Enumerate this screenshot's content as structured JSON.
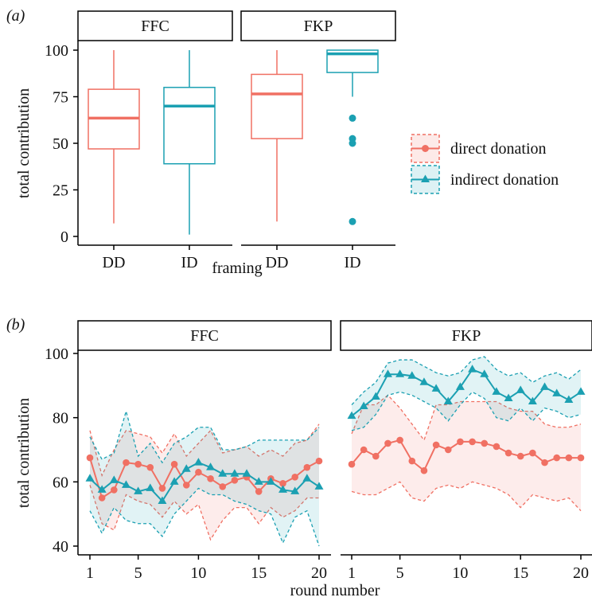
{
  "chart_data": [
    {
      "panel_tag": "(a)",
      "type": "box",
      "facets": [
        "FFC",
        "FKP"
      ],
      "categories": [
        "DD",
        "ID"
      ],
      "xlabel": "framing",
      "ylabel": "total contribution",
      "ylim": [
        0,
        100
      ],
      "yticks": [
        0,
        25,
        50,
        75,
        100
      ],
      "grid": false,
      "boxes": [
        {
          "facet": "FFC",
          "category": "DD",
          "color": "#F07063",
          "min": 7,
          "q1": 47,
          "median": 63.5,
          "q3": 79,
          "max": 100,
          "outliers": []
        },
        {
          "facet": "FFC",
          "category": "ID",
          "color": "#1BA0B2",
          "min": 1,
          "q1": 39,
          "median": 70,
          "q3": 80,
          "max": 100,
          "outliers": []
        },
        {
          "facet": "FKP",
          "category": "DD",
          "color": "#F07063",
          "min": 8,
          "q1": 52.5,
          "median": 76.5,
          "q3": 87,
          "max": 100,
          "outliers": []
        },
        {
          "facet": "FKP",
          "category": "ID",
          "color": "#1BA0B2",
          "min": 75,
          "q1": 88,
          "median": 98,
          "q3": 100,
          "max": 100,
          "outliers": [
            63.5,
            52.5,
            50,
            8
          ]
        }
      ]
    },
    {
      "panel_tag": "(b)",
      "type": "line",
      "facets": [
        "FFC",
        "FKP"
      ],
      "xlabel": "round number",
      "ylabel": "total contribution",
      "xlim": [
        1,
        20
      ],
      "ylim": [
        40,
        100
      ],
      "xticks": [
        1,
        5,
        10,
        15,
        20
      ],
      "yticks": [
        40,
        60,
        80,
        100
      ],
      "x": [
        1,
        2,
        3,
        4,
        5,
        6,
        7,
        8,
        9,
        10,
        11,
        12,
        13,
        14,
        15,
        16,
        17,
        18,
        19,
        20
      ],
      "series": [
        {
          "name": "direct donation",
          "facet": "FFC",
          "color": "#F07063",
          "marker": "circle",
          "values": [
            67.5,
            55,
            57.5,
            66,
            65.5,
            64.5,
            58,
            65.5,
            59,
            63,
            61,
            58.5,
            60.5,
            61.5,
            57,
            61,
            59.5,
            61.5,
            64.5,
            66.5
          ],
          "lower": [
            59,
            47,
            45,
            56,
            54,
            53,
            49,
            54,
            50,
            53,
            42,
            48,
            52,
            52,
            47,
            52,
            49,
            51,
            55,
            55
          ],
          "upper": [
            76,
            62,
            70,
            76,
            75,
            74,
            69,
            75,
            68,
            72,
            76,
            69,
            70,
            71,
            68,
            70,
            68,
            72,
            73,
            78
          ]
        },
        {
          "name": "indirect donation",
          "facet": "FFC",
          "color": "#1BA0B2",
          "marker": "triangle",
          "values": [
            61,
            57.5,
            60.5,
            59,
            57,
            58,
            54,
            60,
            64,
            66,
            64.5,
            62.5,
            62.5,
            62.5,
            60,
            60,
            57.5,
            57,
            61,
            58.5
          ],
          "lower": [
            51,
            44,
            52,
            48,
            47,
            47,
            43,
            50,
            54,
            58,
            56,
            56,
            54,
            53,
            51,
            50,
            41,
            49,
            51,
            40
          ],
          "upper": [
            74,
            67,
            69,
            82,
            68,
            72,
            66,
            72,
            74,
            77,
            77,
            70,
            70,
            71,
            73,
            73,
            73,
            73,
            73,
            77
          ]
        },
        {
          "name": "direct donation",
          "facet": "FKP",
          "color": "#F07063",
          "marker": "circle",
          "values": [
            65.5,
            70,
            68,
            72,
            73,
            66.5,
            63.5,
            71.5,
            70,
            72.5,
            72.5,
            72,
            71,
            69,
            68,
            69,
            66,
            67.5,
            67.5,
            67.5
          ],
          "lower": [
            57,
            56,
            56,
            58,
            60,
            55,
            54,
            58,
            59,
            58,
            60,
            59,
            58,
            56,
            52,
            56,
            55,
            54,
            55,
            51
          ],
          "upper": [
            75,
            84,
            84,
            87,
            83,
            78,
            73,
            84,
            84,
            85,
            85,
            85,
            85,
            83,
            82,
            82,
            78,
            77,
            77,
            78
          ]
        },
        {
          "name": "indirect donation",
          "facet": "FKP",
          "color": "#1BA0B2",
          "marker": "triangle",
          "values": [
            80.5,
            83.5,
            86.5,
            93.5,
            93.5,
            93,
            91,
            89,
            85,
            89.5,
            95,
            93.5,
            88,
            86,
            88.5,
            85,
            89.5,
            87.5,
            85.5,
            88
          ],
          "lower": [
            76,
            77,
            81,
            87,
            88,
            87,
            85,
            83,
            79,
            84,
            88,
            86,
            80,
            79,
            83,
            79,
            83,
            82,
            80,
            81
          ],
          "upper": [
            84,
            88,
            91,
            97,
            98,
            98,
            96,
            94,
            93,
            94,
            98,
            99,
            95,
            93,
            94,
            91,
            93,
            94,
            92,
            95
          ]
        }
      ]
    }
  ],
  "legend": {
    "placement": "right",
    "items": [
      {
        "label": "direct donation",
        "color": "#F07063",
        "marker": "circle"
      },
      {
        "label": "indirect donation",
        "color": "#1BA0B2",
        "marker": "triangle"
      }
    ]
  }
}
